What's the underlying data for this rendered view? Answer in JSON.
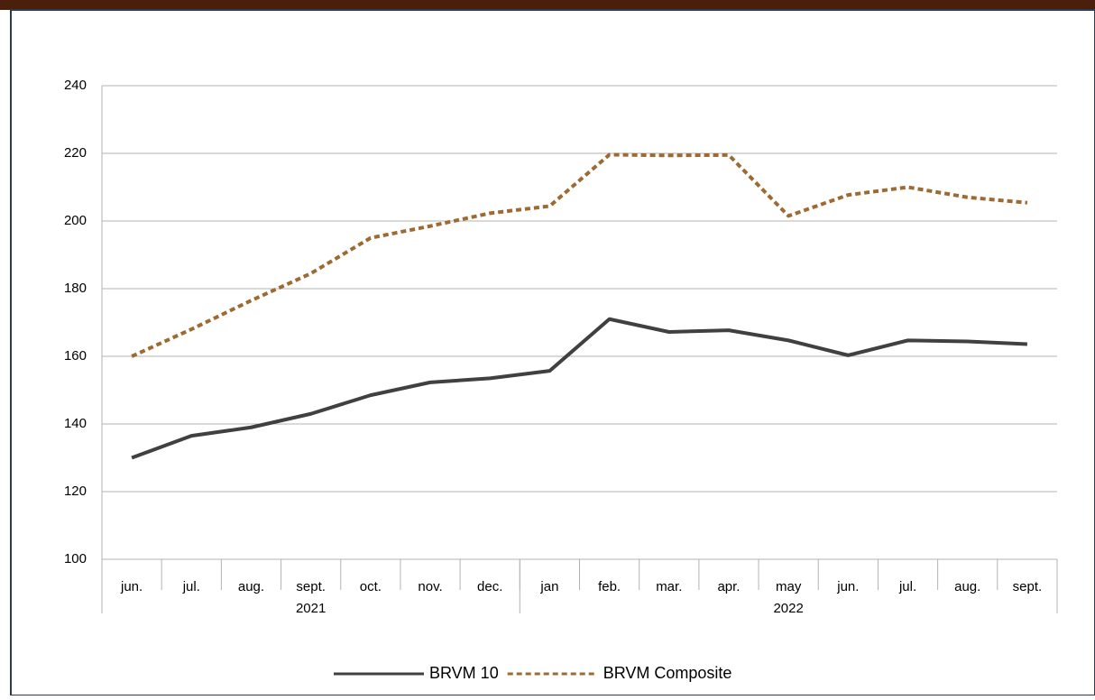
{
  "chart_data": {
    "type": "line",
    "categories": [
      "jun.",
      "jul.",
      "aug.",
      "sept.",
      "oct.",
      "nov.",
      "dec.",
      "jan",
      "feb.",
      "mar.",
      "apr.",
      "may",
      "jun.",
      "jul.",
      "aug.",
      "sept."
    ],
    "groups": [
      {
        "label": "2021",
        "span": 7
      },
      {
        "label": "2022",
        "span": 9
      }
    ],
    "series": [
      {
        "name": "BRVM 10",
        "color": "#404040",
        "dash": false,
        "values": [
          130,
          136.5,
          139,
          143,
          148.5,
          152.3,
          153.5,
          155.7,
          171,
          167.2,
          167.7,
          164.7,
          160.3,
          164.7,
          164.4,
          163.6
        ]
      },
      {
        "name": "BRVM Composite",
        "color": "#9e6a32",
        "dash": true,
        "values": [
          160,
          168,
          176.5,
          184.5,
          195,
          198.5,
          202.3,
          204.4,
          219.6,
          219.4,
          219.5,
          201.5,
          207.7,
          210,
          207,
          205.4
        ]
      }
    ],
    "ylim": [
      100,
      240
    ],
    "yticks": [
      100,
      120,
      140,
      160,
      180,
      200,
      220,
      240
    ],
    "grid": true,
    "legend": "bottom"
  }
}
